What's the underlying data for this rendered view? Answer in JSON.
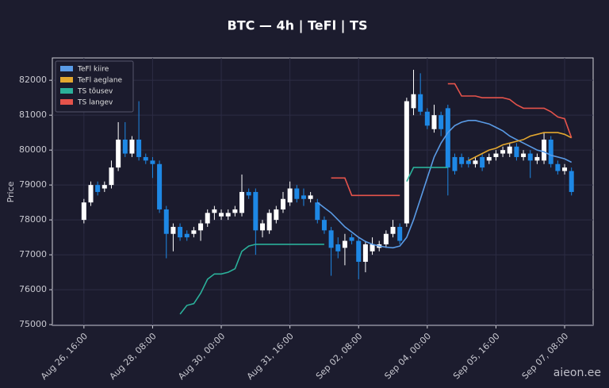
{
  "chart_data": {
    "type": "candlestick",
    "title": "BTC — 4h  |  TeFl  |  TS",
    "y_label": "Price",
    "watermark": "aieon.ee",
    "grid": true,
    "legend": "upper left",
    "up_color": "#ffffff",
    "down_color": "#1e88e5",
    "ylim": [
      74980,
      82640
    ],
    "yticks": [
      75000,
      76000,
      77000,
      78000,
      79000,
      80000,
      81000,
      82000
    ],
    "categories": [
      "Aug 26, 16:00",
      null,
      null,
      null,
      null,
      null,
      null,
      null,
      null,
      null,
      "Aug 28, 08:00",
      null,
      null,
      null,
      null,
      null,
      null,
      null,
      null,
      null,
      "Aug 30, 00:00",
      null,
      null,
      null,
      null,
      null,
      null,
      null,
      null,
      null,
      "Aug 31, 16:00",
      null,
      null,
      null,
      null,
      null,
      null,
      null,
      null,
      null,
      "Sep 02, 08:00",
      null,
      null,
      null,
      null,
      null,
      null,
      null,
      null,
      null,
      "Sep 04, 00:00",
      null,
      null,
      null,
      null,
      null,
      null,
      null,
      null,
      null,
      "Sep 05, 16:00",
      null,
      null,
      null,
      null,
      null,
      null,
      null,
      null,
      null,
      "Sep 07, 08:00",
      null
    ],
    "open": [
      78000,
      78500,
      79000,
      78900,
      79000,
      79500,
      80300,
      79900,
      80300,
      79800,
      79700,
      79600,
      78300,
      77600,
      77800,
      77600,
      77600,
      77700,
      77900,
      78200,
      78100,
      78100,
      78200,
      78200,
      78800,
      78800,
      77700,
      77700,
      78000,
      78300,
      78500,
      78900,
      78700,
      78600,
      78500,
      78000,
      77700,
      77300,
      77200,
      77500,
      77400,
      76800,
      77100,
      77200,
      77300,
      77600,
      77800,
      77900,
      81200,
      81600,
      81100,
      80600,
      81000,
      81200,
      79800,
      79800,
      79700,
      79600,
      79800,
      79700,
      79800,
      79900,
      79900,
      80100,
      79800,
      79900,
      79700,
      79700,
      80300,
      79600,
      79400,
      79400
    ],
    "high": [
      78600,
      79100,
      79100,
      79100,
      79700,
      80800,
      80800,
      80400,
      81400,
      79900,
      79800,
      79700,
      78400,
      77900,
      77900,
      77700,
      77800,
      78000,
      78300,
      78400,
      78300,
      78300,
      78400,
      79300,
      78900,
      78900,
      78000,
      78300,
      78400,
      78800,
      79100,
      79000,
      78900,
      78800,
      78600,
      78100,
      77800,
      77500,
      77600,
      77600,
      77500,
      77400,
      77500,
      77400,
      77700,
      78000,
      77900,
      81500,
      82300,
      82200,
      81200,
      81300,
      81100,
      81300,
      79900,
      79900,
      79800,
      79800,
      79900,
      79900,
      80000,
      80100,
      80200,
      80200,
      80000,
      80000,
      79900,
      80500,
      80400,
      79700,
      79600,
      79500
    ],
    "low": [
      77900,
      78400,
      78700,
      78800,
      78900,
      79400,
      79800,
      79800,
      79700,
      79600,
      79200,
      78200,
      76900,
      77100,
      77400,
      77400,
      77500,
      77400,
      77800,
      78000,
      78000,
      78000,
      78100,
      78100,
      78600,
      77000,
      77500,
      77600,
      77900,
      78200,
      78400,
      78500,
      78400,
      78500,
      77900,
      77600,
      76400,
      76900,
      76700,
      77300,
      76300,
      76500,
      77000,
      77100,
      77200,
      77500,
      77300,
      77800,
      81000,
      81000,
      80600,
      80500,
      80400,
      78700,
      79300,
      79500,
      79500,
      79500,
      79400,
      79600,
      79700,
      79800,
      79800,
      79700,
      79700,
      79200,
      79600,
      79600,
      79500,
      79300,
      79300,
      78700
    ],
    "close": [
      78500,
      79000,
      78800,
      79000,
      79500,
      80300,
      79900,
      80300,
      79800,
      79700,
      79600,
      78300,
      77600,
      77800,
      77500,
      77500,
      77700,
      77900,
      78200,
      78300,
      78200,
      78200,
      78300,
      78800,
      78700,
      77700,
      77900,
      78200,
      78300,
      78600,
      78900,
      78600,
      78600,
      78700,
      78000,
      77700,
      77200,
      77100,
      77400,
      77400,
      76800,
      77300,
      77300,
      77300,
      77600,
      77800,
      77400,
      81400,
      81600,
      81100,
      80700,
      81000,
      80600,
      79500,
      79400,
      79600,
      79600,
      79700,
      79500,
      79800,
      79900,
      80000,
      80100,
      79800,
      79900,
      79700,
      79800,
      80300,
      79600,
      79400,
      79500,
      78800
    ],
    "series": [
      {
        "name": "TeFl kiire",
        "color": "#5a9be6",
        "values": [
          null,
          null,
          null,
          null,
          null,
          null,
          null,
          null,
          null,
          null,
          null,
          null,
          null,
          null,
          null,
          null,
          null,
          null,
          null,
          null,
          null,
          null,
          null,
          null,
          null,
          null,
          null,
          null,
          null,
          null,
          null,
          null,
          null,
          null,
          78500,
          78350,
          78200,
          78000,
          77800,
          77650,
          77500,
          77380,
          77300,
          77250,
          77220,
          77200,
          77250,
          77500,
          78000,
          78600,
          79200,
          79800,
          80200,
          80500,
          80700,
          80800,
          80850,
          80850,
          80800,
          80750,
          80650,
          80550,
          80400,
          80300,
          80200,
          80100,
          80000,
          79950,
          79850,
          79800,
          79750,
          79650
        ]
      },
      {
        "name": "TeFl aeglane",
        "color": "#e3a72f",
        "values": [
          null,
          null,
          null,
          null,
          null,
          null,
          null,
          null,
          null,
          null,
          null,
          null,
          null,
          null,
          null,
          null,
          null,
          null,
          null,
          null,
          null,
          null,
          null,
          null,
          null,
          null,
          null,
          null,
          null,
          null,
          null,
          null,
          null,
          null,
          null,
          null,
          null,
          null,
          null,
          null,
          null,
          null,
          null,
          null,
          null,
          null,
          null,
          null,
          null,
          null,
          null,
          null,
          null,
          null,
          null,
          null,
          79700,
          79800,
          79900,
          80000,
          80050,
          80150,
          80200,
          80250,
          80300,
          80400,
          80450,
          80500,
          80500,
          80500,
          80450,
          80350
        ]
      },
      {
        "name": "TS tõusev",
        "color": "#2bb09a",
        "values": [
          null,
          null,
          null,
          null,
          null,
          null,
          null,
          null,
          null,
          null,
          null,
          null,
          null,
          null,
          75300,
          75550,
          75600,
          75900,
          76300,
          76450,
          76450,
          76500,
          76600,
          77100,
          77250,
          77300,
          77300,
          77300,
          77300,
          77300,
          77300,
          77300,
          77300,
          77300,
          77300,
          77300,
          null,
          null,
          null,
          null,
          null,
          null,
          null,
          null,
          null,
          null,
          null,
          79100,
          79500,
          79500,
          79500,
          79500,
          79500,
          79500,
          null,
          null,
          null,
          null,
          null,
          null,
          null,
          null,
          null,
          null,
          null,
          null,
          null,
          null,
          null,
          null,
          null,
          null
        ]
      },
      {
        "name": "TS langev",
        "color": "#e5534b",
        "values": [
          null,
          null,
          null,
          null,
          null,
          null,
          null,
          null,
          null,
          null,
          null,
          null,
          null,
          null,
          null,
          null,
          null,
          null,
          null,
          null,
          null,
          null,
          null,
          null,
          null,
          null,
          null,
          null,
          null,
          null,
          null,
          null,
          null,
          null,
          null,
          null,
          79200,
          79200,
          79200,
          78700,
          78700,
          78700,
          78700,
          78700,
          78700,
          78700,
          78700,
          null,
          null,
          null,
          null,
          null,
          null,
          81900,
          81900,
          81550,
          81550,
          81550,
          81500,
          81500,
          81500,
          81500,
          81450,
          81300,
          81200,
          81200,
          81200,
          81200,
          81100,
          80950,
          80900,
          80350
        ]
      }
    ]
  }
}
